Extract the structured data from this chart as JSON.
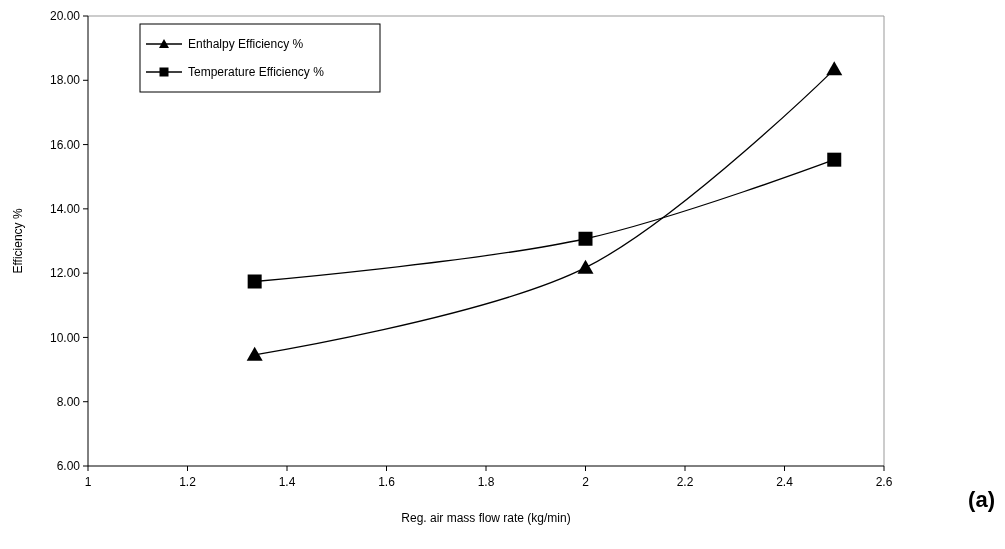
{
  "chart_data": {
    "type": "line",
    "xlabel": "Reg. air mass flow rate  (kg/min)",
    "ylabel": "Efficiency  %",
    "annotations": [
      "(a)"
    ],
    "x": [
      1.335,
      2.0,
      2.5
    ],
    "series": [
      {
        "name": "Enthalpy Efficiency  %",
        "color": "#000000",
        "marker": "triangle",
        "values": [
          9.46,
          12.17,
          18.34
        ]
      },
      {
        "name": "Temperature Efficiency  %",
        "color": "#000000",
        "marker": "square",
        "values": [
          11.74,
          13.07,
          15.53
        ]
      }
    ],
    "xlim": [
      1,
      2.6
    ],
    "xticks": [
      1,
      1.2,
      1.4,
      1.6,
      1.8,
      2,
      2.2,
      2.4,
      2.6
    ],
    "ylim": [
      6,
      20
    ],
    "yticks": [
      {
        "value": 6,
        "label": "6.00"
      },
      {
        "value": 8,
        "label": "8.00"
      },
      {
        "value": 10,
        "label": "10.00"
      },
      {
        "value": 12,
        "label": "12.00"
      },
      {
        "value": 14,
        "label": "14.00"
      },
      {
        "value": 16,
        "label": "16.00"
      },
      {
        "value": 18,
        "label": "18.00"
      },
      {
        "value": 20,
        "label": "20.00"
      }
    ],
    "grid": false,
    "legend": "top left",
    "line_style": "solid"
  }
}
